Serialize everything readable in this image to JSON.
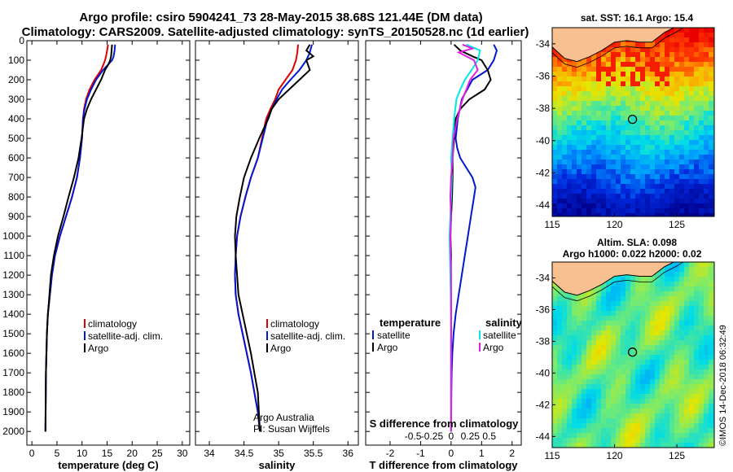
{
  "header": {
    "line1": "Argo profile: csiro 5904241_73 28-May-2015 38.68S 121.44E (DM data)",
    "line2": "Climatology: CARS2009. Satellite-adjusted climatology: synTS_20150528.nc (1d earlier)"
  },
  "colors": {
    "climatology": "#e00000",
    "satellite": "#0018d0",
    "argo": "#000000",
    "sat_sal": "#00e8e8",
    "argo_sal": "#e020e0",
    "land": "#f8c090"
  },
  "chart_data": [
    {
      "type": "line",
      "name": "temperature",
      "xlabel": "temperature (deg C)",
      "xlim": [
        -1,
        31.5
      ],
      "ylim": [
        2070,
        0
      ],
      "xticks": [
        0,
        5,
        10,
        15,
        20,
        25,
        30
      ],
      "yticks": [
        0,
        100,
        200,
        300,
        400,
        500,
        600,
        700,
        800,
        900,
        1000,
        1100,
        1200,
        1300,
        1400,
        1500,
        1600,
        1700,
        1800,
        1900,
        2000
      ],
      "ytick_labels": [
        "0",
        "100",
        "200",
        "300",
        "400",
        "500",
        "600",
        "700",
        "800",
        "900",
        "1000",
        "1100",
        "1200",
        "1300",
        "1400",
        "1500",
        "1600",
        "1700",
        "1800",
        "1900",
        "2000"
      ],
      "legend": [
        "climatology",
        "satellite-adj. clim.",
        "Argo"
      ],
      "series": [
        {
          "key": "climatology",
          "x": [
            15.2,
            15.0,
            14.8,
            14.6,
            14.3,
            13.8,
            12.5,
            11.5,
            10.8,
            10.4,
            10.2,
            10.0,
            9.6,
            9.0,
            8.0,
            6.8,
            5.6,
            4.6,
            4.0,
            3.6,
            3.2,
            3.0,
            2.8,
            2.7
          ],
          "y": [
            20,
            50,
            80,
            100,
            120,
            150,
            200,
            250,
            300,
            350,
            400,
            500,
            600,
            700,
            800,
            900,
            1000,
            1100,
            1200,
            1300,
            1400,
            1500,
            1700,
            2000
          ]
        },
        {
          "key": "satellite",
          "x": [
            16.6,
            16.5,
            16.3,
            16.0,
            15.3,
            14.2,
            12.8,
            11.8,
            11.0,
            10.5,
            10.2,
            10.0,
            9.6,
            9.0,
            8.0,
            6.8,
            5.6,
            4.6,
            4.0,
            3.6,
            3.2,
            3.0,
            2.8,
            2.7
          ],
          "y": [
            20,
            50,
            80,
            100,
            120,
            150,
            200,
            250,
            300,
            350,
            400,
            500,
            600,
            700,
            800,
            900,
            1000,
            1100,
            1200,
            1300,
            1400,
            1500,
            1700,
            2000
          ]
        },
        {
          "key": "argo",
          "x": [
            16.0,
            15.9,
            15.8,
            15.6,
            15.3,
            14.6,
            13.8,
            12.8,
            11.8,
            11.0,
            10.4,
            9.9,
            9.3,
            8.4,
            7.3,
            6.3,
            5.2,
            4.4,
            3.8,
            3.5,
            3.2,
            3.0,
            2.8,
            2.7
          ],
          "y": [
            20,
            50,
            80,
            100,
            120,
            150,
            200,
            250,
            300,
            350,
            400,
            500,
            600,
            700,
            800,
            900,
            1000,
            1100,
            1200,
            1300,
            1400,
            1500,
            1700,
            2000
          ]
        }
      ]
    },
    {
      "type": "line",
      "name": "salinity",
      "xlabel": "salinity",
      "xlim": [
        33.8,
        36.15
      ],
      "ylim": [
        2070,
        0
      ],
      "xticks": [
        34,
        34.5,
        35,
        35.5,
        36
      ],
      "legend": [
        "climatology",
        "satellite-adj. clim.",
        "Argo"
      ],
      "annotation": [
        "Argo Australia",
        "PI: Susan Wijffels"
      ],
      "series": [
        {
          "key": "climatology",
          "x": [
            35.28,
            35.27,
            35.25,
            35.2,
            35.1,
            35.0,
            34.95,
            34.88,
            34.82,
            34.76,
            34.7,
            34.6,
            34.52,
            34.45,
            34.4,
            34.38,
            34.37,
            34.38,
            34.42,
            34.48,
            34.54,
            34.6,
            34.65,
            34.7,
            34.73
          ],
          "y": [
            20,
            60,
            100,
            150,
            200,
            250,
            300,
            350,
            400,
            500,
            600,
            700,
            800,
            900,
            1000,
            1100,
            1200,
            1300,
            1400,
            1500,
            1600,
            1700,
            1800,
            1900,
            2000
          ]
        },
        {
          "key": "satellite",
          "x": [
            35.48,
            35.45,
            35.4,
            35.3,
            35.17,
            35.05,
            34.97,
            34.9,
            34.84,
            34.77,
            34.7,
            34.6,
            34.52,
            34.45,
            34.4,
            34.38,
            34.37,
            34.38,
            34.42,
            34.48,
            34.54,
            34.6,
            34.65,
            34.7,
            34.73
          ],
          "y": [
            20,
            60,
            100,
            150,
            200,
            250,
            300,
            350,
            400,
            500,
            600,
            700,
            800,
            900,
            1000,
            1100,
            1200,
            1300,
            1400,
            1500,
            1600,
            1700,
            1800,
            1900,
            2000
          ]
        },
        {
          "key": "argo",
          "x": [
            35.45,
            35.4,
            35.5,
            35.4,
            35.45,
            35.3,
            35.15,
            35.0,
            34.9,
            34.85,
            34.72,
            34.6,
            34.5,
            34.44,
            34.39,
            34.37,
            34.38,
            34.42,
            34.48,
            34.54,
            34.6,
            34.65,
            34.7,
            34.73
          ],
          "y": [
            20,
            50,
            80,
            100,
            150,
            200,
            250,
            300,
            350,
            400,
            500,
            600,
            700,
            800,
            900,
            1000,
            1100,
            1300,
            1400,
            1500,
            1600,
            1700,
            1800,
            2000
          ]
        }
      ]
    },
    {
      "type": "line",
      "name": "difference",
      "xlabel": "T difference from climatology",
      "xlabel_top": "S difference from climatology",
      "xlim": [
        -2.8,
        2.3
      ],
      "ylim": [
        2070,
        0
      ],
      "xticks": [
        -2,
        -1,
        0,
        1,
        2
      ],
      "xticks_top": [
        -0.5,
        -0.25,
        0,
        0.25,
        0.5
      ],
      "xtick_top_labels": [
        "-0.5",
        "-0.25",
        "0",
        "0.25",
        "0.5"
      ],
      "legend_left_title": "temperature",
      "legend_right_title": "salinity",
      "legend_left": [
        "satellite",
        "Argo"
      ],
      "legend_right": [
        "satellite",
        "Argo"
      ],
      "series": [
        {
          "key": "t_satellite",
          "x": [
            1.4,
            1.5,
            1.4,
            1.2,
            0.7,
            0.35,
            0.22,
            0.15,
            0.2,
            0.3,
            0.5,
            0.7,
            0.8,
            0.75,
            0.65,
            0.55,
            0.45,
            0.35,
            0.25,
            0.15,
            0.08,
            0.04,
            0.02,
            0.01,
            0.0
          ],
          "y": [
            20,
            50,
            100,
            150,
            200,
            300,
            400,
            500,
            550,
            600,
            650,
            700,
            750,
            800,
            900,
            1000,
            1100,
            1200,
            1300,
            1400,
            1500,
            1600,
            1700,
            1800,
            2000
          ]
        },
        {
          "key": "t_argo",
          "x": [
            0.1,
            0.3,
            0.7,
            1.0,
            1.2,
            1.3,
            1.1,
            0.6,
            0.3,
            0.15,
            0.1,
            0.05,
            0.05,
            0.03,
            0.0,
            -0.02,
            0.0,
            -0.01,
            0.0,
            0.0,
            0.0
          ],
          "y": [
            20,
            50,
            80,
            100,
            150,
            200,
            250,
            300,
            350,
            400,
            500,
            600,
            700,
            800,
            900,
            1000,
            1100,
            1200,
            1400,
            1600,
            2000
          ]
        },
        {
          "key": "s_satellite",
          "x": [
            0.2,
            0.38,
            0.35,
            0.27,
            0.18,
            0.12,
            0.07,
            0.04,
            0.02,
            0.0,
            0.01,
            0.0,
            -0.01,
            -0.02,
            -0.01,
            0.0,
            0.0,
            0.0,
            0.0
          ],
          "y": [
            20,
            50,
            100,
            150,
            200,
            250,
            300,
            400,
            500,
            600,
            700,
            800,
            900,
            1000,
            1200,
            1400,
            1600,
            1800,
            2000
          ]
        },
        {
          "key": "s_argo",
          "x": [
            0.15,
            0.28,
            0.1,
            0.3,
            0.35,
            0.25,
            0.2,
            0.15,
            0.08,
            0.03,
            0.02,
            0.0,
            -0.01,
            0.0,
            -0.01,
            0.0,
            0.0,
            0.0
          ],
          "y": [
            20,
            40,
            60,
            100,
            150,
            200,
            250,
            300,
            400,
            500,
            600,
            700,
            800,
            900,
            1000,
            1200,
            1500,
            2000
          ]
        }
      ]
    }
  ],
  "maps": {
    "top": {
      "title": "sat. SST: 16.1 Argo: 15.4",
      "xticks": [
        115,
        120,
        125
      ],
      "yticks": [
        -34,
        -36,
        -38,
        -40,
        -42,
        -44
      ],
      "xlim": [
        115,
        128
      ],
      "ylim": [
        -33,
        -44.7
      ],
      "argo_position": {
        "lon": 121.44,
        "lat": -38.68
      }
    },
    "bottom": {
      "title_line1": "Altim. SLA: 0.098",
      "title_line2": "Argo h1000: 0.022 h2000: 0.02",
      "xticks": [
        115,
        120,
        125
      ],
      "yticks": [
        -34,
        -36,
        -38,
        -40,
        -42,
        -44
      ],
      "xlim": [
        115,
        128
      ],
      "ylim": [
        -33,
        -44.7
      ],
      "argo_position": {
        "lon": 121.44,
        "lat": -38.68
      }
    },
    "credit": "©IMOS 14-Dec-2018 06:32:49"
  }
}
